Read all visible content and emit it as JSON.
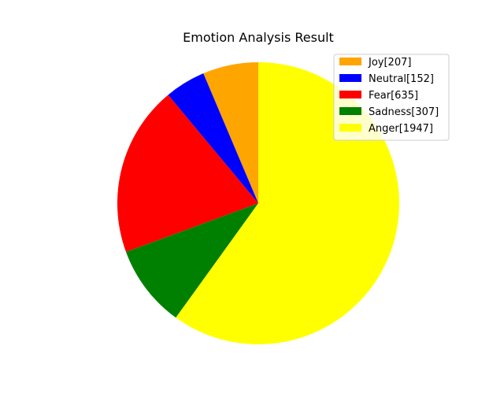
{
  "chart_data": {
    "type": "pie",
    "title": "Emotion Analysis Result",
    "start_angle_deg": 90,
    "direction": "counterclockwise",
    "legend_position": "upper-right",
    "slices": [
      {
        "label": "Joy[207]",
        "value": 207,
        "color": "#FFA500"
      },
      {
        "label": "Neutral[152]",
        "value": 152,
        "color": "#0000FF"
      },
      {
        "label": "Fear[635]",
        "value": 635,
        "color": "#FF0000"
      },
      {
        "label": "Sadness[307]",
        "value": 307,
        "color": "#008000"
      },
      {
        "label": "Anger[1947]",
        "value": 1947,
        "color": "#FFFF00"
      }
    ]
  }
}
